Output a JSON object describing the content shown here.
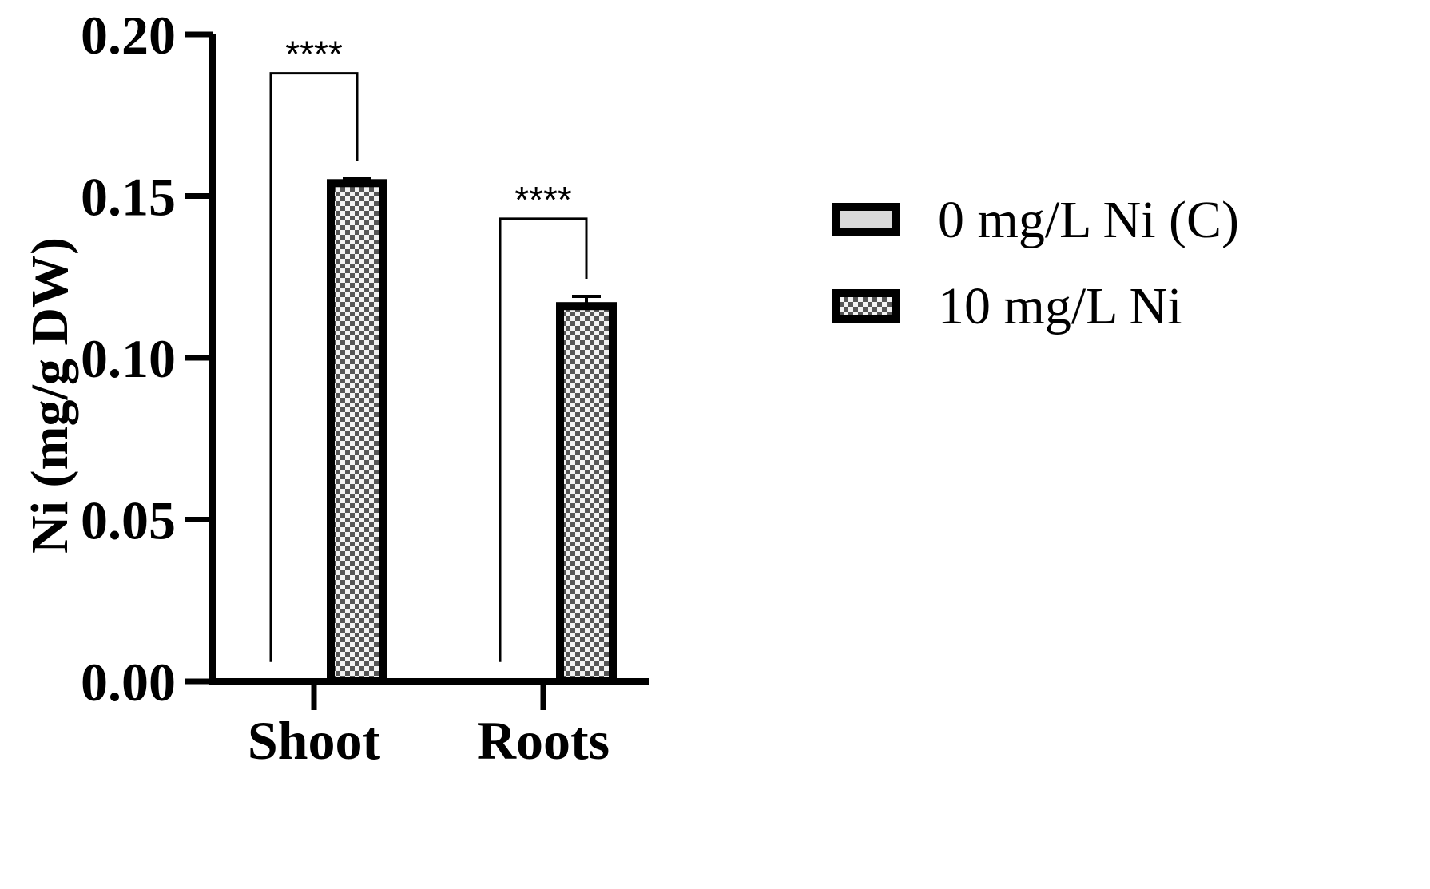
{
  "chart_data": {
    "type": "bar",
    "title": "",
    "xlabel": "",
    "ylabel": "Ni (mg/g DW)",
    "ylim": [
      0,
      0.2
    ],
    "yticks": [
      "0.00",
      "0.05",
      "0.10",
      "0.15",
      "0.20"
    ],
    "ytick_values": [
      0,
      0.05,
      0.1,
      0.15,
      0.2
    ],
    "categories": [
      "Shoot",
      "Roots"
    ],
    "series": [
      {
        "name": "0 mg/L Ni (C)",
        "values": [
          0.0002,
          0.0002
        ],
        "errors": [
          0,
          0
        ],
        "fill": "solid-light-gray",
        "color": "#d9d9d9"
      },
      {
        "name": "10 mg/L Ni",
        "values": [
          0.154,
          0.116
        ],
        "errors": [
          0.0015,
          0.003
        ],
        "fill": "checkered",
        "color": "#808080"
      }
    ],
    "significance": [
      {
        "category": "Shoot",
        "label": "****",
        "bracket_top": 0.188
      },
      {
        "category": "Roots",
        "label": "****",
        "bracket_top": 0.143
      }
    ],
    "legend_position": "right",
    "grid": false
  }
}
